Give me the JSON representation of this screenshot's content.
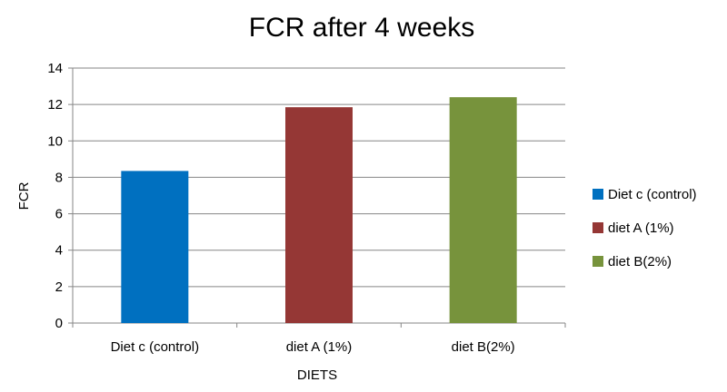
{
  "chart_data": {
    "type": "bar",
    "title": "FCR after 4 weeks",
    "xlabel": "DIETS",
    "ylabel": "FCR",
    "categories": [
      "Diet c (control)",
      "diet A (1%)",
      "diet B(2%)"
    ],
    "values": [
      8.35,
      11.85,
      12.4
    ],
    "colors": [
      "#0070C0",
      "#953735",
      "#77933C"
    ],
    "ylim": [
      0,
      14
    ],
    "yticks": [
      "0",
      "2",
      "4",
      "6",
      "8",
      "10",
      "12",
      "14"
    ],
    "grid": true,
    "legend": {
      "position": "right",
      "entries": [
        "Diet c (control)",
        "diet A (1%)",
        "diet B(2%)"
      ]
    }
  }
}
